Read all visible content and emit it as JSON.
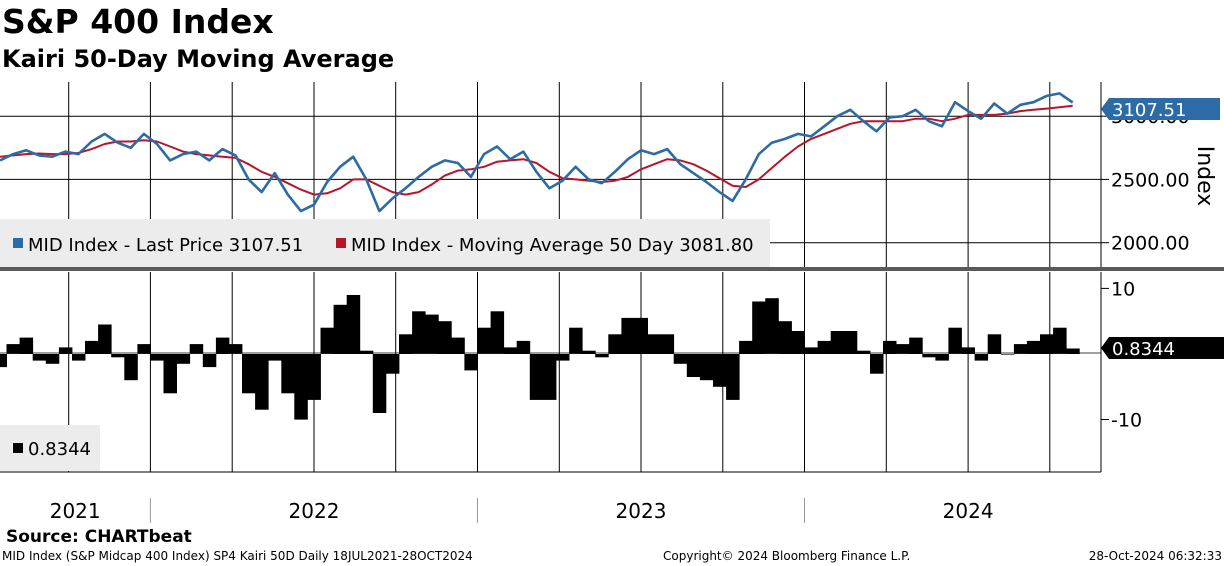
{
  "header": {
    "title": "S&P 400 Index",
    "subtitle": "Kairi 50-Day Moving Average"
  },
  "footer": {
    "source": "Source: CHARTbeat",
    "description": "MID Index (S&P Midcap 400 Index) SP4 Kairi 50D  Daily 18JUL2021-28OCT2024",
    "copyright": "Copyright© 2024 Bloomberg Finance L.P.",
    "timestamp": "28-Oct-2024 06:32:33"
  },
  "colors": {
    "price": "#2d6ba6",
    "moving_average": "#b5162b",
    "kairi": "#000000",
    "grid": "#000000",
    "callout_price": "#2d6ba6",
    "callout_kairi": "#000000"
  },
  "chart_data": [
    {
      "type": "line",
      "title": "S&P 400 Index",
      "ylabel": "Index",
      "ylim": [
        1800,
        3270
      ],
      "yticks": [
        2000,
        2500,
        3000
      ],
      "ytick_labels": [
        "2000.00",
        "2500.00",
        "3000.00"
      ],
      "x_range": [
        2021.54,
        2024.83
      ],
      "legend": {
        "placement": "bottom-left",
        "entries": [
          {
            "label": "MID Index - Last Price 3107.51",
            "color": "#2d6ba6"
          },
          {
            "label": "MID Index - Moving Average 50 Day 3081.80",
            "color": "#b5162b"
          }
        ]
      },
      "last_value_label": "3107.51",
      "series": [
        {
          "name": "MID Index - Last Price",
          "color": "#2d6ba6",
          "x": [
            2021.54,
            2021.58,
            2021.62,
            2021.66,
            2021.7,
            2021.74,
            2021.78,
            2021.82,
            2021.86,
            2021.9,
            2021.94,
            2021.98,
            2022.02,
            2022.06,
            2022.1,
            2022.14,
            2022.18,
            2022.22,
            2022.26,
            2022.3,
            2022.34,
            2022.38,
            2022.42,
            2022.46,
            2022.5,
            2022.54,
            2022.58,
            2022.62,
            2022.66,
            2022.7,
            2022.74,
            2022.78,
            2022.82,
            2022.86,
            2022.9,
            2022.94,
            2022.98,
            2023.02,
            2023.06,
            2023.1,
            2023.14,
            2023.18,
            2023.22,
            2023.26,
            2023.3,
            2023.34,
            2023.38,
            2023.42,
            2023.46,
            2023.5,
            2023.54,
            2023.58,
            2023.62,
            2023.66,
            2023.7,
            2023.74,
            2023.78,
            2023.82,
            2023.86,
            2023.9,
            2023.94,
            2023.98,
            2024.02,
            2024.06,
            2024.1,
            2024.14,
            2024.18,
            2024.22,
            2024.26,
            2024.3,
            2024.34,
            2024.38,
            2024.42,
            2024.46,
            2024.5,
            2024.54,
            2024.58,
            2024.62,
            2024.66,
            2024.7,
            2024.74,
            2024.78,
            2024.82
          ],
          "values": [
            2650,
            2700,
            2730,
            2690,
            2680,
            2720,
            2700,
            2800,
            2860,
            2790,
            2750,
            2860,
            2780,
            2650,
            2700,
            2720,
            2650,
            2740,
            2690,
            2500,
            2400,
            2550,
            2380,
            2250,
            2300,
            2480,
            2600,
            2680,
            2500,
            2250,
            2350,
            2430,
            2520,
            2600,
            2650,
            2630,
            2520,
            2700,
            2760,
            2660,
            2720,
            2560,
            2430,
            2490,
            2600,
            2500,
            2470,
            2560,
            2660,
            2730,
            2700,
            2740,
            2620,
            2550,
            2480,
            2400,
            2330,
            2500,
            2700,
            2790,
            2820,
            2860,
            2840,
            2920,
            3000,
            3050,
            2960,
            2880,
            2990,
            3000,
            3050,
            2960,
            2920,
            3110,
            3040,
            2980,
            3100,
            3020,
            3090,
            3110,
            3160,
            3180,
            3108
          ]
        },
        {
          "name": "MID Index - Moving Average 50 Day",
          "color": "#b5162b",
          "x": [
            2021.54,
            2021.58,
            2021.62,
            2021.66,
            2021.7,
            2021.74,
            2021.78,
            2021.82,
            2021.86,
            2021.9,
            2021.94,
            2021.98,
            2022.02,
            2022.06,
            2022.1,
            2022.14,
            2022.18,
            2022.22,
            2022.26,
            2022.3,
            2022.34,
            2022.38,
            2022.42,
            2022.46,
            2022.5,
            2022.54,
            2022.58,
            2022.62,
            2022.66,
            2022.7,
            2022.74,
            2022.78,
            2022.82,
            2022.86,
            2022.9,
            2022.94,
            2022.98,
            2023.02,
            2023.06,
            2023.1,
            2023.14,
            2023.18,
            2023.22,
            2023.26,
            2023.3,
            2023.34,
            2023.38,
            2023.42,
            2023.46,
            2023.5,
            2023.54,
            2023.58,
            2023.62,
            2023.66,
            2023.7,
            2023.74,
            2023.78,
            2023.82,
            2023.86,
            2023.9,
            2023.94,
            2023.98,
            2024.02,
            2024.06,
            2024.1,
            2024.14,
            2024.18,
            2024.22,
            2024.26,
            2024.3,
            2024.34,
            2024.38,
            2024.42,
            2024.46,
            2024.5,
            2024.54,
            2024.58,
            2024.62,
            2024.66,
            2024.7,
            2024.74,
            2024.78,
            2024.82
          ],
          "values": [
            2680,
            2690,
            2700,
            2705,
            2700,
            2700,
            2710,
            2740,
            2780,
            2800,
            2800,
            2810,
            2800,
            2760,
            2720,
            2700,
            2690,
            2680,
            2670,
            2620,
            2560,
            2520,
            2470,
            2420,
            2380,
            2390,
            2430,
            2500,
            2500,
            2450,
            2400,
            2380,
            2400,
            2460,
            2530,
            2570,
            2580,
            2600,
            2640,
            2650,
            2660,
            2630,
            2560,
            2510,
            2500,
            2490,
            2480,
            2490,
            2520,
            2580,
            2620,
            2660,
            2650,
            2620,
            2570,
            2510,
            2450,
            2440,
            2500,
            2590,
            2680,
            2760,
            2820,
            2860,
            2900,
            2940,
            2960,
            2960,
            2960,
            2960,
            2980,
            2980,
            2960,
            2980,
            3010,
            3010,
            3010,
            3020,
            3040,
            3050,
            3060,
            3070,
            3082
          ]
        }
      ]
    },
    {
      "type": "bar",
      "title": "Kairi 50-Day Moving Average",
      "ylim": [
        -18,
        12.5
      ],
      "yticks": [
        10,
        -10
      ],
      "ytick_labels": [
        "10",
        "-10"
      ],
      "x_range": [
        2021.54,
        2024.83
      ],
      "legend": {
        "placement": "bottom-left",
        "entries": [
          {
            "label": "0.8344",
            "color": "#000000"
          }
        ]
      },
      "last_value_label": "0.8344",
      "series": [
        {
          "name": "Kairi 50D",
          "color": "#000000",
          "x": [
            2021.54,
            2021.58,
            2021.62,
            2021.66,
            2021.7,
            2021.74,
            2021.78,
            2021.82,
            2021.86,
            2021.9,
            2021.94,
            2021.98,
            2022.02,
            2022.06,
            2022.1,
            2022.14,
            2022.18,
            2022.22,
            2022.26,
            2022.3,
            2022.34,
            2022.38,
            2022.42,
            2022.46,
            2022.5,
            2022.54,
            2022.58,
            2022.62,
            2022.66,
            2022.7,
            2022.74,
            2022.78,
            2022.82,
            2022.86,
            2022.9,
            2022.94,
            2022.98,
            2023.02,
            2023.06,
            2023.1,
            2023.14,
            2023.18,
            2023.22,
            2023.26,
            2023.3,
            2023.34,
            2023.38,
            2023.42,
            2023.46,
            2023.5,
            2023.54,
            2023.58,
            2023.62,
            2023.66,
            2023.7,
            2023.74,
            2023.78,
            2023.82,
            2023.86,
            2023.9,
            2023.94,
            2023.98,
            2024.02,
            2024.06,
            2024.1,
            2024.14,
            2024.18,
            2024.22,
            2024.26,
            2024.3,
            2024.34,
            2024.38,
            2024.42,
            2024.46,
            2024.5,
            2024.54,
            2024.58,
            2024.62,
            2024.66,
            2024.7,
            2024.74,
            2024.78,
            2024.82
          ],
          "values": [
            -2,
            1.5,
            2.5,
            -1,
            -1.5,
            1,
            -1,
            2,
            4.5,
            -0.5,
            -4,
            1.5,
            -1,
            -6,
            -1.5,
            1.5,
            -2,
            2.5,
            1.5,
            -6,
            -8.5,
            -1,
            -6,
            -10,
            -7,
            4,
            7.5,
            9,
            0.5,
            -9,
            -3,
            3,
            6.5,
            6,
            5,
            2.5,
            -2.5,
            4,
            6.5,
            1,
            2,
            -7,
            -7,
            -1,
            4,
            0.5,
            -0.5,
            3,
            5.5,
            5.5,
            3,
            3,
            -1.5,
            -3.5,
            -4,
            -5,
            -7,
            2,
            8,
            8.5,
            5,
            3.5,
            1,
            2,
            3.5,
            3.5,
            0.5,
            -3,
            2,
            1.5,
            2.5,
            -0.5,
            -1,
            4,
            1,
            -1,
            3,
            0,
            1.5,
            2,
            3,
            4,
            0.8344
          ]
        }
      ]
    }
  ],
  "x_axis": {
    "year_labels": [
      {
        "label": "2021",
        "x": 2021.77
      },
      {
        "label": "2022",
        "x": 2022.5
      },
      {
        "label": "2023",
        "x": 2023.5
      },
      {
        "label": "2024",
        "x": 2024.5
      }
    ],
    "year_boundaries": [
      2022.0,
      2023.0,
      2024.0
    ],
    "quarter_gridlines": [
      2021.75,
      2022.0,
      2022.25,
      2022.5,
      2022.75,
      2023.0,
      2023.25,
      2023.5,
      2023.75,
      2024.0,
      2024.25,
      2024.5,
      2024.75
    ]
  }
}
